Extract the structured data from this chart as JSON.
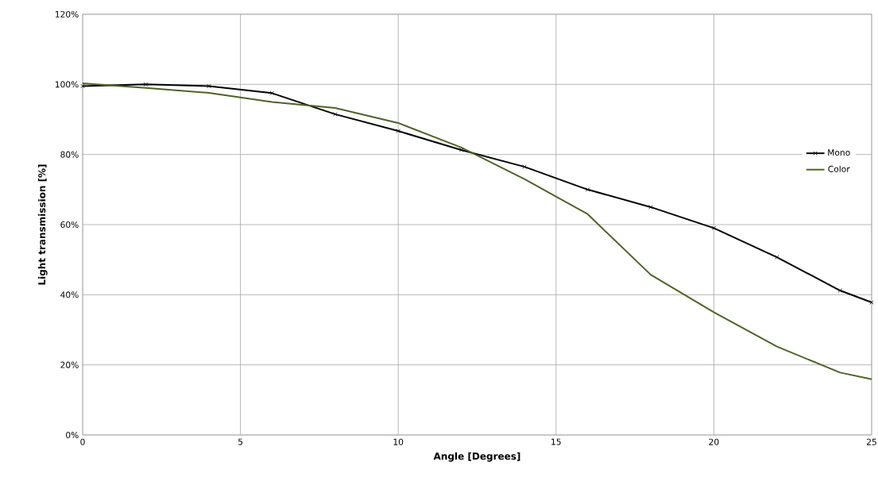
{
  "chart_data": {
    "type": "line",
    "xlabel": "Angle [Degrees]",
    "ylabel": "Light transmission [%]",
    "x": [
      0,
      2,
      4,
      6,
      8,
      10,
      12,
      14,
      16,
      18,
      20,
      22,
      24,
      25
    ],
    "series": [
      {
        "name": "Mono",
        "color": "#000000",
        "marker": "cross",
        "values": [
          99.5,
          100,
          99.5,
          97.5,
          91.5,
          86.7,
          81.3,
          76.5,
          70,
          65,
          59,
          50.7,
          41.2,
          37.8
        ]
      },
      {
        "name": "Color",
        "color": "#4f6228",
        "marker": "none",
        "values": [
          100.3,
          99,
          97.6,
          95,
          93.3,
          89,
          82,
          73,
          63,
          45.7,
          35,
          25.2,
          17.8,
          15.9
        ]
      }
    ],
    "xlim": [
      0,
      25
    ],
    "xticks": [
      0,
      5,
      10,
      15,
      20,
      25
    ],
    "ylim": [
      0,
      120
    ],
    "yticks": [
      {
        "value": 0,
        "label": "0%"
      },
      {
        "value": 20,
        "label": "20%"
      },
      {
        "value": 40,
        "label": "40%"
      },
      {
        "value": 60,
        "label": "60%"
      },
      {
        "value": 80,
        "label": "80%"
      },
      {
        "value": 100,
        "label": "100%"
      },
      {
        "value": 120,
        "label": "120%"
      }
    ],
    "grid": true,
    "legend": "right"
  }
}
